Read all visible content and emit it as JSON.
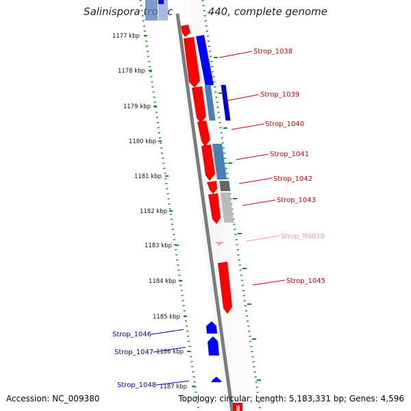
{
  "title": "Salinispora tropica CNB-440, complete genome",
  "footer": {
    "accession": "Accession: NC_009380",
    "summary": "Topology: circular; Length: 5,183,331 bp; Genes: 4,596"
  },
  "scale": {
    "ticks": [
      "1177 kbp",
      "1178 kbp",
      "1179 kbp",
      "1180 kbp",
      "1181 kbp",
      "1182 kbp",
      "1183 kbp",
      "1184 kbp",
      "1185 kbp",
      "1186 kbp",
      "1187 kbp"
    ]
  },
  "genes": [
    {
      "label": "Strop_1038",
      "color": "#cc0000"
    },
    {
      "label": "Strop_1039",
      "color": "#cc0000"
    },
    {
      "label": "Strop_1040",
      "color": "#cc0000"
    },
    {
      "label": "Strop_1041",
      "color": "#cc0000"
    },
    {
      "label": "Strop_1042",
      "color": "#cc0000"
    },
    {
      "label": "Strop_1043",
      "color": "#cc0000"
    },
    {
      "label": "Strop_R0018",
      "color": "#f48fc0"
    },
    {
      "label": "Strop_1045",
      "color": "#cc0000"
    },
    {
      "label": "Strop_1046",
      "color": "#0000aa"
    },
    {
      "label": "Strop_1047",
      "color": "#0000aa"
    },
    {
      "label": "Strop_1048",
      "color": "#0000aa"
    }
  ],
  "colors": {
    "forward_strand": "#ff0000",
    "reverse_strand": "#0000ff",
    "steel_blue": "#4a7fb5",
    "dark_gray": "#666666",
    "light_gray": "#bbbbbb",
    "rna_pink": "#f7a1c8",
    "dotted_track": "#1a8a1a",
    "backbone": "#808080"
  }
}
